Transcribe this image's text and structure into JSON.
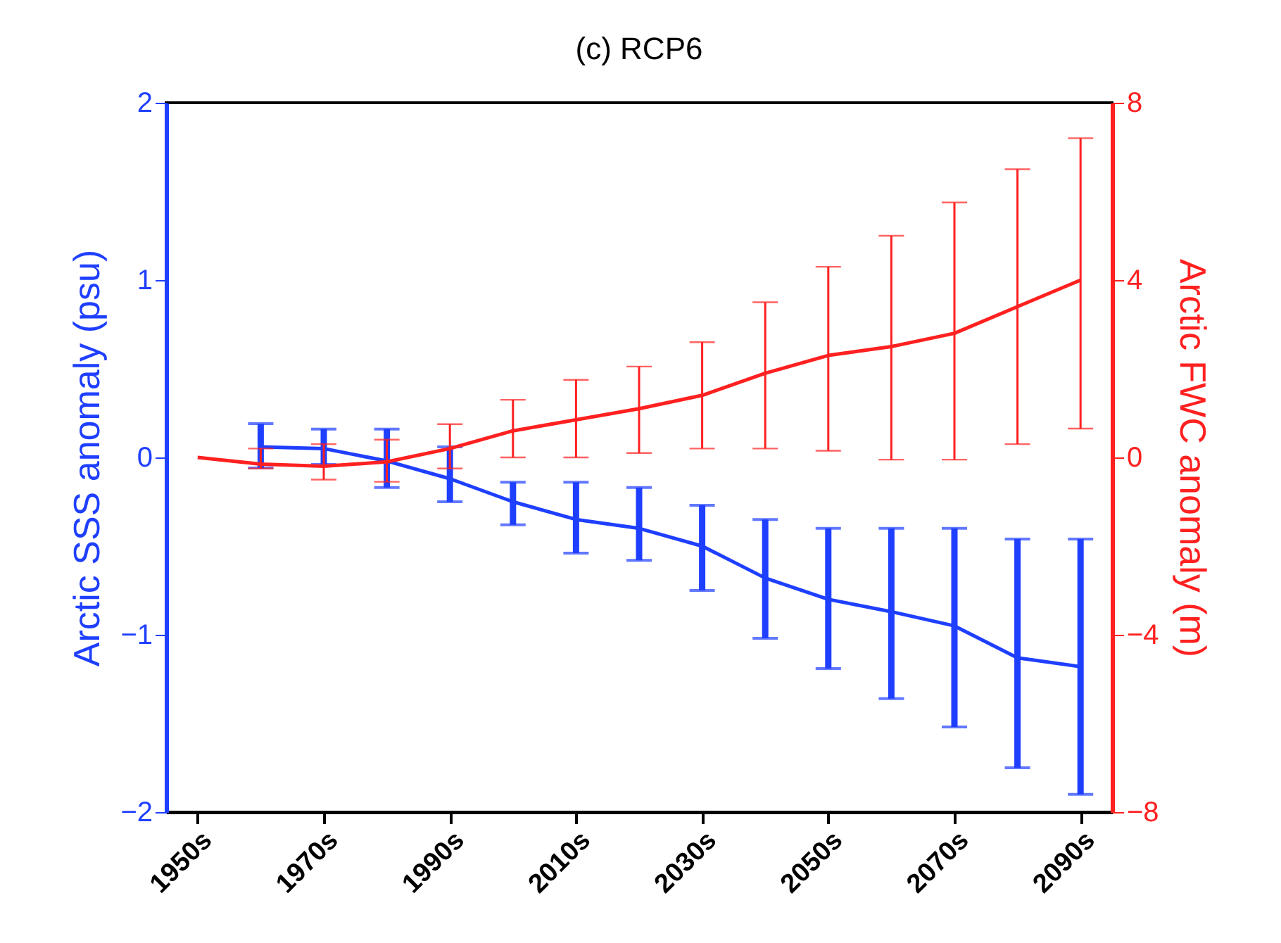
{
  "chart_data": {
    "type": "line",
    "title": "(c) RCP6",
    "ylabel": "Arctic SSS anomaly (psu)",
    "y2label": "Arctic FWC anomaly (m)",
    "categories": [
      "1950s",
      null,
      "1970s",
      null,
      "1990s",
      null,
      "2010s",
      null,
      "2030s",
      null,
      "2050s",
      null,
      "2070s",
      null,
      "2090s"
    ],
    "ylim": [
      -2,
      2
    ],
    "yticks": [
      -2,
      -1,
      0,
      1,
      2
    ],
    "y2lim": [
      -8,
      8
    ],
    "y2ticks": [
      -8,
      -4,
      0,
      4,
      8
    ],
    "grid": false,
    "series": [
      {
        "color": "#1f3fff",
        "values": [
          null,
          0.06,
          0.05,
          -0.02,
          -0.12,
          -0.25,
          -0.35,
          -0.4,
          -0.5,
          -0.68,
          -0.8,
          -0.87,
          -0.95,
          -1.13,
          -1.18
        ],
        "errors": [
          null,
          [
            -0.06,
            0.19
          ],
          [
            -0.04,
            0.16
          ],
          [
            -0.17,
            0.16
          ],
          [
            -0.25,
            0.06
          ],
          [
            -0.38,
            -0.14
          ],
          [
            -0.54,
            -0.14
          ],
          [
            -0.58,
            -0.17
          ],
          [
            -0.75,
            -0.27
          ],
          [
            -1.02,
            -0.35
          ],
          [
            -1.19,
            -0.4
          ],
          [
            -1.36,
            -0.4
          ],
          [
            -1.52,
            -0.4
          ],
          [
            -1.75,
            -0.46
          ],
          [
            -1.9,
            -0.46
          ]
        ]
      },
      {
        "color": "#ff2020",
        "axis": "y2",
        "values": [
          0,
          -0.15,
          -0.2,
          -0.1,
          0.2,
          0.6,
          0.85,
          1.1,
          1.4,
          1.9,
          2.3,
          2.5,
          2.8,
          3.4,
          4.0
        ],
        "errors": [
          null,
          [
            -0.25,
            0.2
          ],
          [
            -0.5,
            0.3
          ],
          [
            -0.55,
            0.4
          ],
          [
            -0.25,
            0.75
          ],
          [
            0,
            1.3
          ],
          [
            0,
            1.75
          ],
          [
            0.1,
            2.05
          ],
          [
            0.2,
            2.6
          ],
          [
            0.2,
            3.5
          ],
          [
            0.15,
            4.3
          ],
          [
            -0.05,
            5.0
          ],
          [
            -0.05,
            5.75
          ],
          [
            0.3,
            6.5
          ],
          [
            0.65,
            7.2
          ]
        ]
      }
    ]
  }
}
